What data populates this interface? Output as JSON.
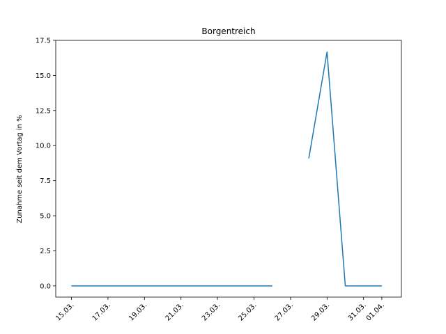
{
  "chart_data": {
    "type": "line",
    "title": "Borgentreich",
    "xlabel": "",
    "ylabel": "Zunahme seit dem Vortag in %",
    "x": [
      "15.03.",
      "16.03.",
      "17.03.",
      "18.03.",
      "19.03.",
      "20.03.",
      "21.03.",
      "22.03.",
      "23.03.",
      "24.03.",
      "25.03.",
      "26.03.",
      "27.03.",
      "28.03.",
      "29.03.",
      "30.03.",
      "31.03.",
      "01.04."
    ],
    "x_ticks": [
      "15.03.",
      "17.03.",
      "19.03.",
      "21.03.",
      "23.03.",
      "25.03.",
      "27.03.",
      "29.03.",
      "31.03.",
      "01.04."
    ],
    "y_ticks": [
      "0.0",
      "2.5",
      "5.0",
      "7.5",
      "10.0",
      "12.5",
      "15.0",
      "17.5"
    ],
    "ylim": [
      -0.8,
      17.5
    ],
    "grid": false,
    "series": [
      {
        "values": [
          0,
          0,
          0,
          0,
          0,
          0,
          0,
          0,
          0,
          0,
          0,
          0,
          null,
          9.09,
          16.67,
          0,
          0,
          0
        ],
        "color": "#1f77b4"
      }
    ]
  }
}
